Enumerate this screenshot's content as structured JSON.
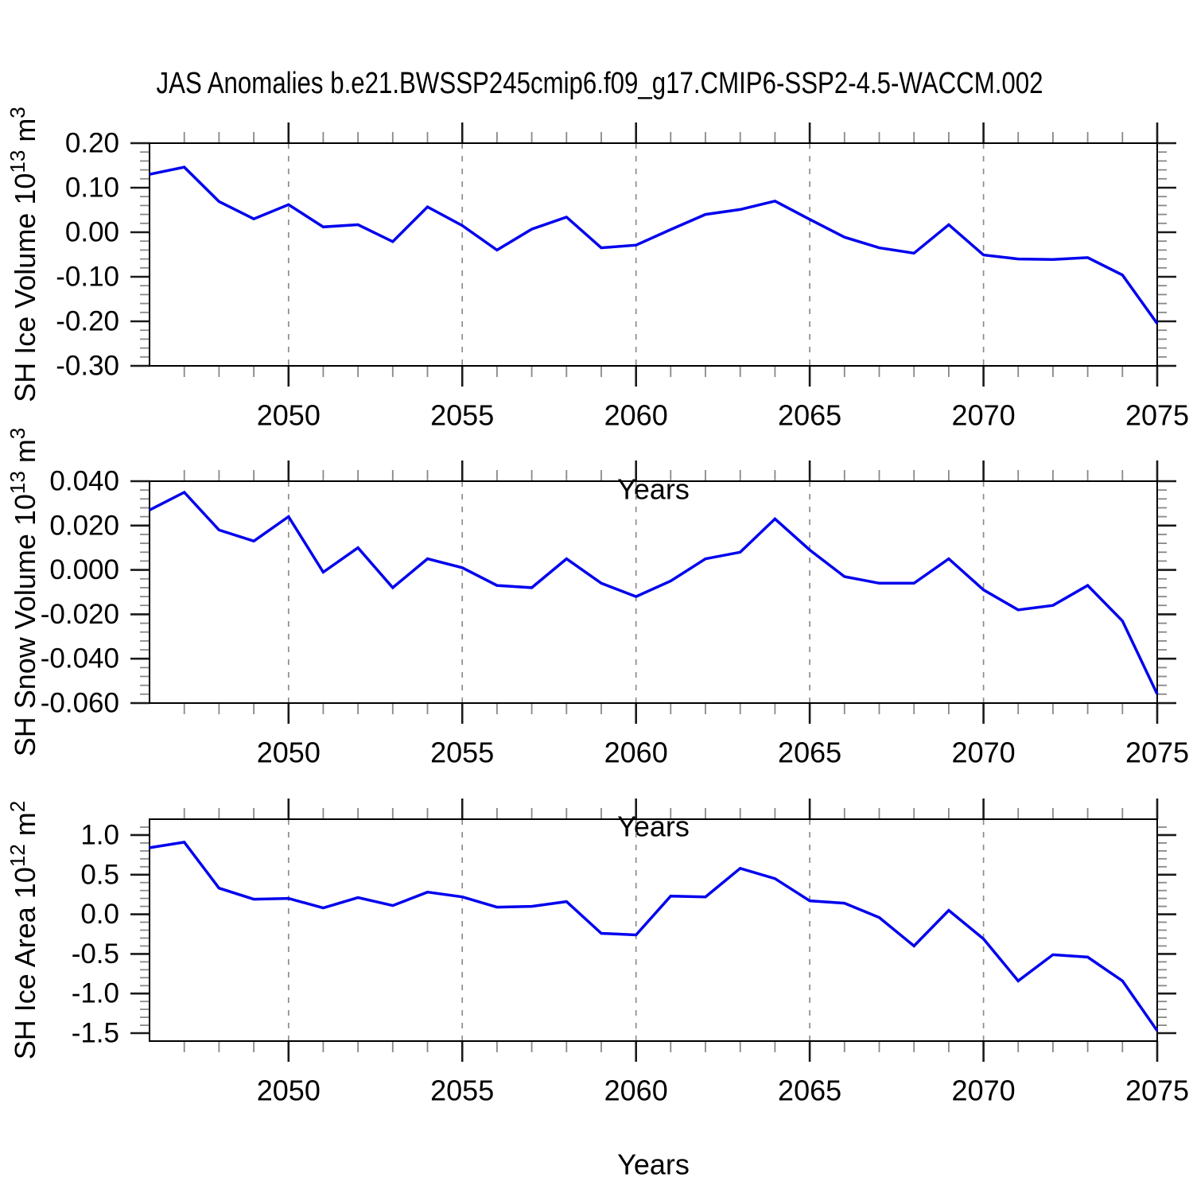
{
  "title": "JAS Anomalies b.e21.BWSSP245cmip6.f09_g17.CMIP6-SSP2-4.5-WACCM.002",
  "colors": {
    "line": "#0000ee",
    "axis": "#000000",
    "major_tick": "#1a1a1a",
    "minor_tick": "#888888",
    "grid": "#8c8c8c",
    "text": "#000000"
  },
  "x_axis": {
    "label": "Years",
    "min": 2046,
    "max": 2075,
    "major_ticks": [
      2050,
      2055,
      2060,
      2065,
      2070,
      2075
    ],
    "major_tick_labels": [
      "2050",
      "2055",
      "2060",
      "2065",
      "2070",
      "2075"
    ],
    "minor_step": 1,
    "gridline_years": [
      2050,
      2055,
      2060,
      2065,
      2070
    ]
  },
  "years": [
    2046,
    2047,
    2048,
    2049,
    2050,
    2051,
    2052,
    2053,
    2054,
    2055,
    2056,
    2057,
    2058,
    2059,
    2060,
    2061,
    2062,
    2063,
    2064,
    2065,
    2066,
    2067,
    2068,
    2069,
    2070,
    2071,
    2072,
    2073,
    2074,
    2075
  ],
  "chart_data": [
    {
      "type": "line",
      "title": "",
      "xlabel": "Years",
      "ylabel": "SH Ice Volume 10¹³ m³",
      "ylabel_parts": [
        [
          "t",
          "SH Ice Volume 10"
        ],
        [
          "s",
          "13"
        ],
        [
          "t",
          " m"
        ],
        [
          "s",
          "3"
        ]
      ],
      "ylim": [
        -0.3,
        0.2
      ],
      "yticks": [
        {
          "v": 0.2,
          "label": "0.20"
        },
        {
          "v": 0.1,
          "label": "0.10"
        },
        {
          "v": 0.0,
          "label": "0.00"
        },
        {
          "v": -0.1,
          "label": "-0.10"
        },
        {
          "v": -0.2,
          "label": "-0.20"
        },
        {
          "v": -0.3,
          "label": "-0.30"
        }
      ],
      "yminor_step": 0.02,
      "grid": "vertical-dashed",
      "legend": "none",
      "values": [
        0.13,
        0.146,
        0.069,
        0.03,
        0.062,
        0.012,
        0.017,
        -0.021,
        0.057,
        0.015,
        -0.04,
        0.007,
        0.034,
        -0.035,
        -0.029,
        0.006,
        0.04,
        0.051,
        0.07,
        0.029,
        -0.011,
        -0.035,
        -0.047,
        0.017,
        -0.051,
        -0.06,
        -0.061,
        -0.057,
        -0.096,
        -0.205
      ]
    },
    {
      "type": "line",
      "title": "",
      "xlabel": "Years",
      "ylabel": "SH Snow Volume 10¹³ m³",
      "ylabel_parts": [
        [
          "t",
          "SH Snow Volume 10"
        ],
        [
          "s",
          "13"
        ],
        [
          "t",
          " m"
        ],
        [
          "s",
          "3"
        ]
      ],
      "ylim": [
        -0.06,
        0.04
      ],
      "yticks": [
        {
          "v": 0.04,
          "label": "0.040"
        },
        {
          "v": 0.02,
          "label": "0.020"
        },
        {
          "v": 0.0,
          "label": "0.000"
        },
        {
          "v": -0.02,
          "label": "-0.020"
        },
        {
          "v": -0.04,
          "label": "-0.040"
        },
        {
          "v": -0.06,
          "label": "-0.060"
        }
      ],
      "yminor_step": 0.004,
      "grid": "vertical-dashed",
      "legend": "none",
      "values": [
        0.027,
        0.035,
        0.018,
        0.013,
        0.024,
        -0.001,
        0.01,
        -0.008,
        0.005,
        0.001,
        -0.007,
        -0.008,
        0.005,
        -0.006,
        -0.012,
        -0.005,
        0.005,
        0.008,
        0.023,
        0.009,
        -0.003,
        -0.006,
        -0.006,
        0.005,
        -0.009,
        -0.018,
        -0.016,
        -0.007,
        -0.023,
        -0.056
      ]
    },
    {
      "type": "line",
      "title": "",
      "xlabel": "Years",
      "ylabel": "SH Ice Area 10¹² m²",
      "ylabel_parts": [
        [
          "t",
          "SH Ice Area 10"
        ],
        [
          "s",
          "12"
        ],
        [
          "t",
          " m"
        ],
        [
          "s",
          "2"
        ]
      ],
      "ylim": [
        -1.6,
        1.2
      ],
      "yticks": [
        {
          "v": 1.0,
          "label": "1.0"
        },
        {
          "v": 0.5,
          "label": "0.5"
        },
        {
          "v": 0.0,
          "label": "0.0"
        },
        {
          "v": -0.5,
          "label": "-0.5"
        },
        {
          "v": -1.0,
          "label": "-1.0"
        },
        {
          "v": -1.5,
          "label": "-1.5"
        }
      ],
      "yminor_step": 0.1,
      "grid": "vertical-dashed",
      "legend": "none",
      "values": [
        0.84,
        0.91,
        0.33,
        0.19,
        0.2,
        0.08,
        0.21,
        0.11,
        0.28,
        0.22,
        0.09,
        0.1,
        0.16,
        -0.24,
        -0.26,
        0.23,
        0.22,
        0.58,
        0.45,
        0.17,
        0.14,
        -0.04,
        -0.4,
        0.05,
        -0.31,
        -0.84,
        -0.51,
        -0.54,
        -0.84,
        -1.47
      ]
    }
  ]
}
